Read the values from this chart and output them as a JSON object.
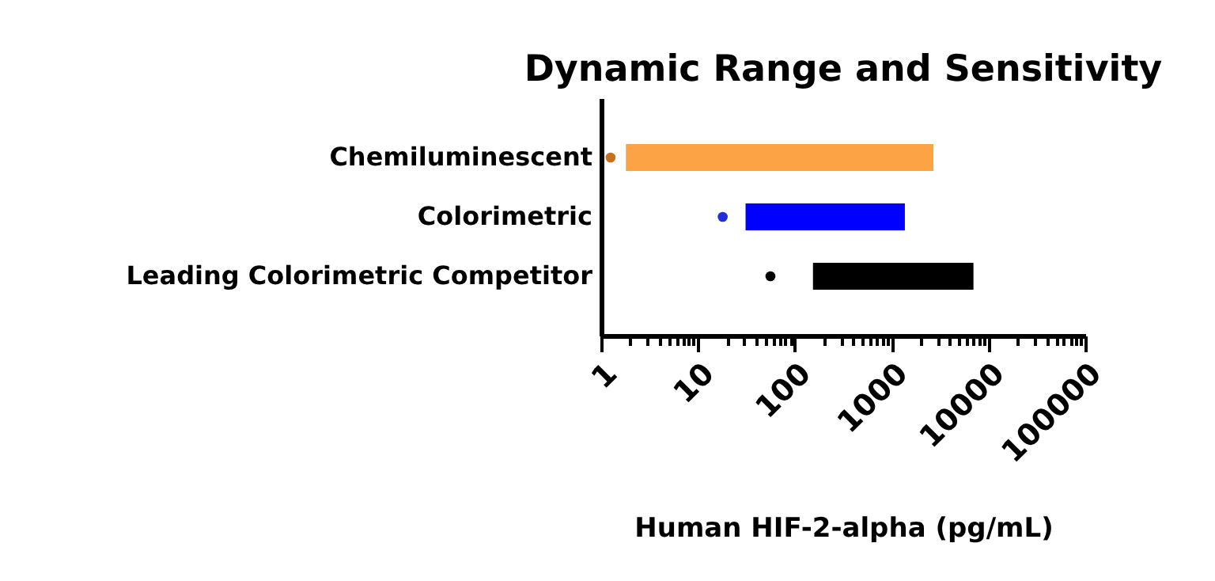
{
  "chart_data": {
    "type": "bar",
    "orientation": "horizontal",
    "title": "Dynamic Range and Sensitivity",
    "xlabel": "Human HIF-2-alpha (pg/mL)",
    "categories": [
      "Chemiluminescent",
      "Colorimetric",
      "Leading Colorimetric Competitor"
    ],
    "series": [
      {
        "colors": [
          "#fca346",
          "#0000ff",
          "#000000"
        ],
        "base": [
          1.8,
          31,
          154
        ],
        "values": [
          2698,
          1339,
          6846
        ]
      },
      {
        "type": "scatter",
        "colors": [
          "#c8701e",
          "#1e2ee0",
          "#000000"
        ],
        "values": [
          1.25,
          18,
          56
        ]
      }
    ],
    "log": "x",
    "xlim": [
      1,
      100000
    ],
    "xticks": [
      1,
      {
        "value": 2,
        "label": null
      },
      {
        "value": 3,
        "label": null
      },
      {
        "value": 4,
        "label": null
      },
      {
        "value": 5,
        "label": null
      },
      {
        "value": 6,
        "label": null
      },
      {
        "value": 7,
        "label": null
      },
      {
        "value": 8,
        "label": null
      },
      {
        "value": 9,
        "label": null
      },
      10,
      {
        "value": 20,
        "label": null
      },
      {
        "value": 30,
        "label": null
      },
      {
        "value": 40,
        "label": null
      },
      {
        "value": 50,
        "label": null
      },
      {
        "value": 60,
        "label": null
      },
      {
        "value": 70,
        "label": null
      },
      {
        "value": 80,
        "label": null
      },
      {
        "value": 90,
        "label": null
      },
      100,
      {
        "value": 200,
        "label": null
      },
      {
        "value": 300,
        "label": null
      },
      {
        "value": 400,
        "label": null
      },
      {
        "value": 500,
        "label": null
      },
      {
        "value": 600,
        "label": null
      },
      {
        "value": 700,
        "label": null
      },
      {
        "value": 800,
        "label": null
      },
      {
        "value": 900,
        "label": null
      },
      1000,
      {
        "value": 2000,
        "label": null
      },
      {
        "value": 3000,
        "label": null
      },
      {
        "value": 4000,
        "label": null
      },
      {
        "value": 5000,
        "label": null
      },
      {
        "value": 6000,
        "label": null
      },
      {
        "value": 7000,
        "label": null
      },
      {
        "value": 8000,
        "label": null
      },
      {
        "value": 9000,
        "label": null
      },
      10000,
      {
        "value": 20000,
        "label": null
      },
      {
        "value": 30000,
        "label": null
      },
      {
        "value": 40000,
        "label": null
      },
      {
        "value": 50000,
        "label": null
      },
      {
        "value": 60000,
        "label": null
      },
      {
        "value": 70000,
        "label": null
      },
      {
        "value": 80000,
        "label": null
      },
      {
        "value": 90000,
        "label": null
      },
      100000
    ],
    "marker": "circle",
    "grid": false
  }
}
